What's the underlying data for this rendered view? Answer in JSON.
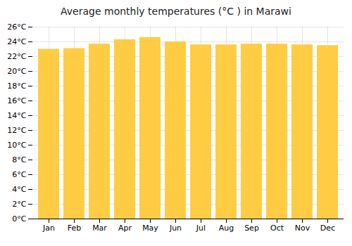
{
  "chart_data": {
    "type": "bar",
    "title": "Average monthly temperatures (°C ) in Marawi",
    "categories": [
      "Jan",
      "Feb",
      "Mar",
      "Apr",
      "May",
      "Jun",
      "Jul",
      "Aug",
      "Sep",
      "Oct",
      "Nov",
      "Dec"
    ],
    "values": [
      23.0,
      23.1,
      23.7,
      24.3,
      24.6,
      24.0,
      23.6,
      23.6,
      23.7,
      23.7,
      23.6,
      23.5
    ],
    "color": "#FFCC44",
    "ylim": [
      0,
      26
    ],
    "yticks": [
      {
        "value": 0,
        "label": "0°C"
      },
      {
        "value": 2,
        "label": "2°C"
      },
      {
        "value": 4,
        "label": "4°C"
      },
      {
        "value": 6,
        "label": "6°C"
      },
      {
        "value": 8,
        "label": "8°C"
      },
      {
        "value": 10,
        "label": "10°C"
      },
      {
        "value": 12,
        "label": "12°C"
      },
      {
        "value": 14,
        "label": "14°C"
      },
      {
        "value": 16,
        "label": "16°C"
      },
      {
        "value": 18,
        "label": "18°C"
      },
      {
        "value": 20,
        "label": "20°C"
      },
      {
        "value": 22,
        "label": "22°C"
      },
      {
        "value": 24,
        "label": "24°C"
      },
      {
        "value": 26,
        "label": "26°C"
      }
    ],
    "grid": true
  }
}
